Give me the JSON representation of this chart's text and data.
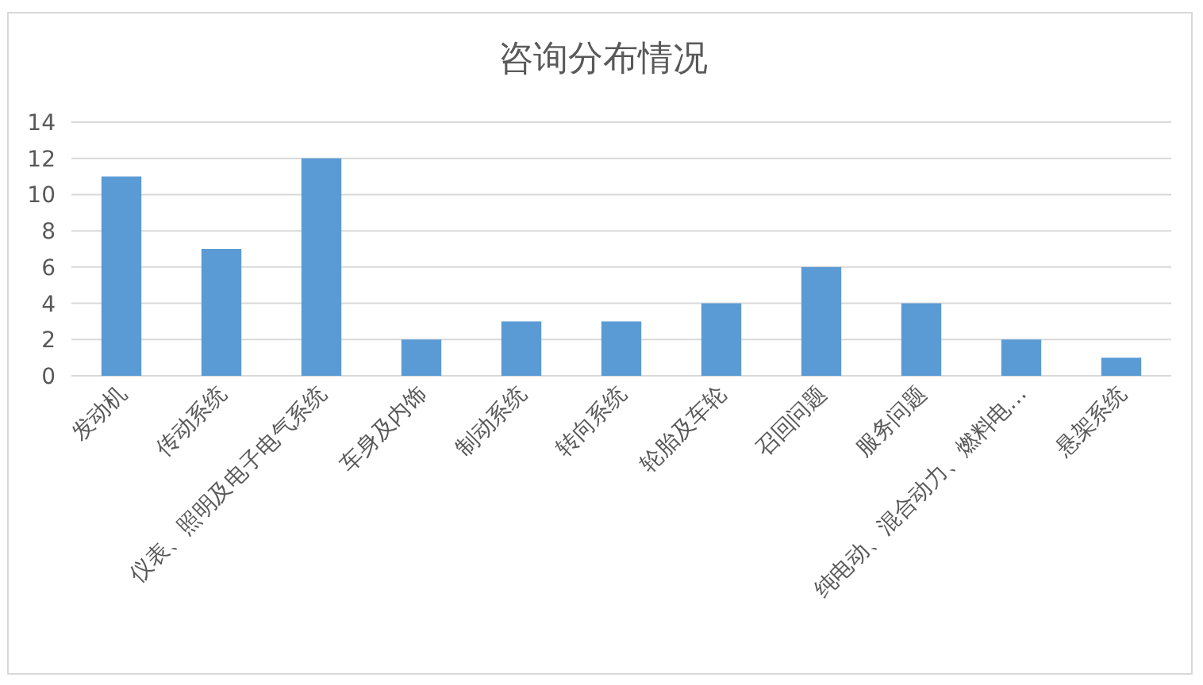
{
  "chart_data": {
    "type": "bar",
    "title": "咨询分布情况",
    "categories": [
      "发动机",
      "传动系统",
      "仪表、照明及电子电气系统",
      "车身及内饰",
      "制动系统",
      "转向系统",
      "轮胎及车轮",
      "召回问题",
      "服务问题",
      "纯电动、混合动力、燃料电…",
      "悬架系统"
    ],
    "values": [
      11,
      7,
      12,
      2,
      3,
      3,
      4,
      6,
      4,
      2,
      1
    ],
    "color": "#5b9bd5",
    "ylim": [
      0,
      14
    ],
    "yticks": [
      0,
      2,
      4,
      6,
      8,
      10,
      12,
      14
    ],
    "grid": "y"
  }
}
